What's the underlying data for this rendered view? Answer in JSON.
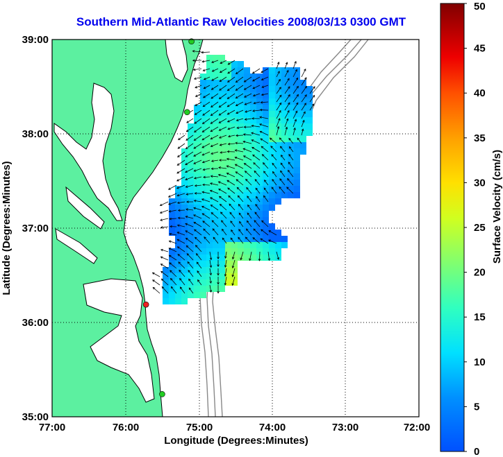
{
  "title": "Southern Mid-Atlantic Raw Velocities 2008/03/13 0300 GMT",
  "x_axis": {
    "label": "Longitude (Degrees:Minutes)",
    "ticks": [
      "77:00",
      "76:00",
      "75:00",
      "74:00",
      "73:00",
      "72:00"
    ]
  },
  "y_axis": {
    "label": "Latitude (Degrees:Minutes)",
    "ticks": [
      "39:00",
      "38:00",
      "37:00",
      "36:00",
      "35:00"
    ]
  },
  "colorbar": {
    "label": "Surface Velocity (cm/s)",
    "ticks": [
      "50",
      "45",
      "40",
      "35",
      "30",
      "25",
      "20",
      "15",
      "10",
      "5",
      "0"
    ],
    "min": 0,
    "max": 50
  },
  "colors": {
    "land": "#5cf0a0",
    "water": "#ffffff",
    "coastline": "#000000",
    "bathymetry": "#888888",
    "title": "#0000ee",
    "station_green": "#22cc22",
    "station_red": "#ee2222"
  },
  "stations": [
    {
      "lon": -75.1,
      "lat": 38.98,
      "color": "green"
    },
    {
      "lon": -75.16,
      "lat": 38.23,
      "color": "green"
    },
    {
      "lon": -75.72,
      "lat": 36.19,
      "color": "red"
    },
    {
      "lon": -75.5,
      "lat": 35.24,
      "color": "green"
    }
  ]
}
